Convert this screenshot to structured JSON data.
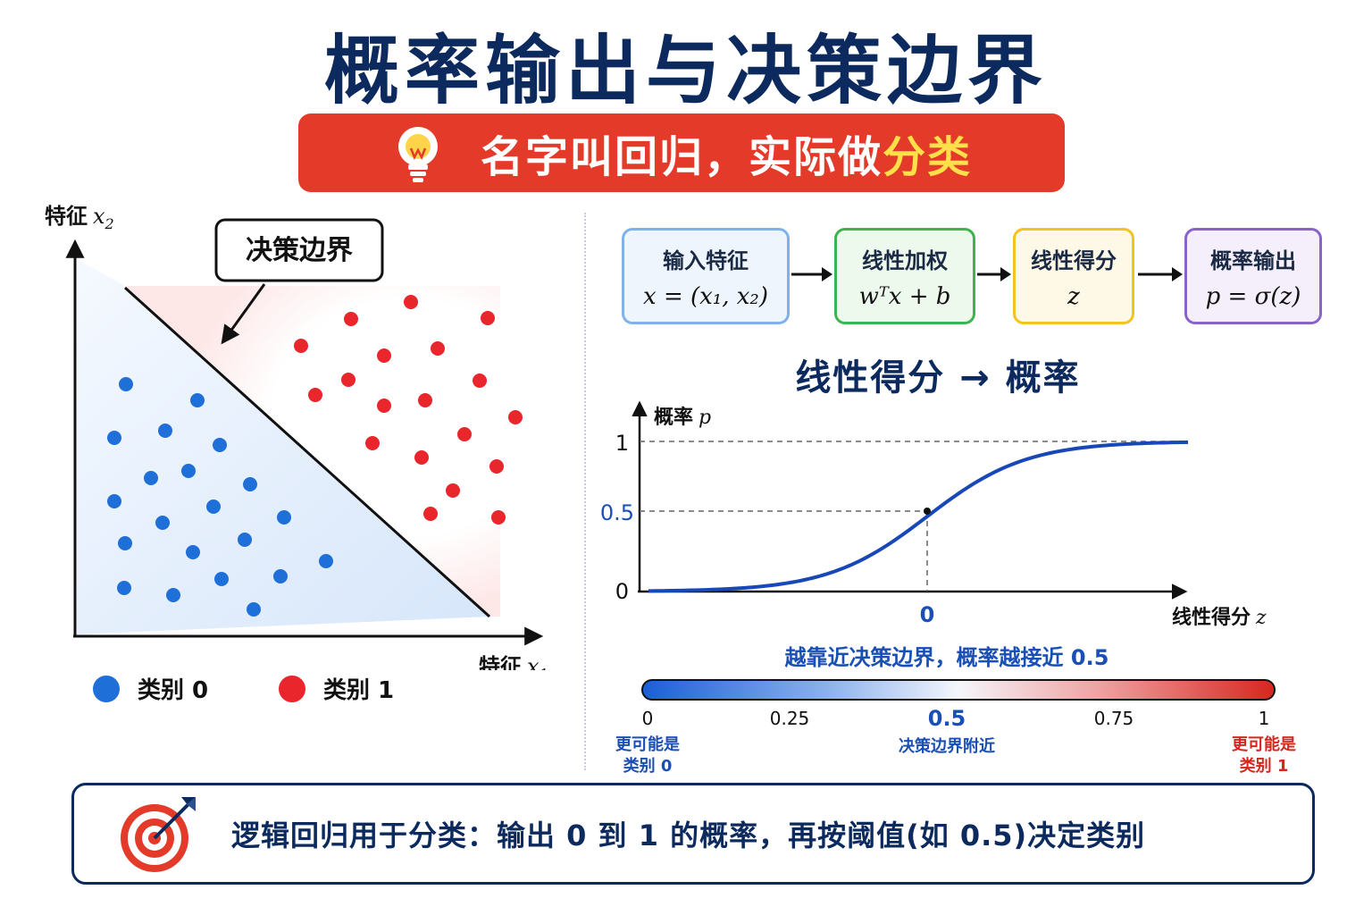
{
  "title": "概率输出与决策边界",
  "banner": {
    "text": "名字叫回归，实际做",
    "highlight": "分类",
    "icon": "lightbulb-icon",
    "color": "#e33a2a",
    "highlight_color": "#ffe04a"
  },
  "scatter": {
    "y_axis_label": "特征",
    "y_axis_var": "x",
    "y_axis_sub": "2",
    "x_axis_label": "特征",
    "x_axis_var": "x",
    "x_axis_sub": "1",
    "boundary_label": "决策边界",
    "class0_color": "#1f6fd8",
    "class1_color": "#e8262b",
    "legend": [
      {
        "label": "类别 0",
        "color": "#1f6fd8"
      },
      {
        "label": "类别 1",
        "color": "#e8262b"
      }
    ]
  },
  "pipeline": [
    {
      "title": "输入特征",
      "formula": "x = (x₁, x₂)",
      "color": "#7fb2ea",
      "bg": "#eef5fd"
    },
    {
      "title": "线性加权",
      "formula": "wᵀx + b",
      "color": "#3fb34f",
      "bg": "#eef9ee"
    },
    {
      "title": "线性得分",
      "formula": "z",
      "color": "#f3c320",
      "bg": "#fef9e6"
    },
    {
      "title": "概率输出",
      "formula": "p = σ(z)",
      "color": "#8a63c7",
      "bg": "#f4effb"
    }
  ],
  "sigmoid": {
    "title": "线性得分 → 概率",
    "y_label": "概率",
    "y_var": "p",
    "x_label": "线性得分",
    "x_var": "z",
    "y_ticks": [
      "1",
      "0.5",
      "0"
    ],
    "x_tick": "0",
    "curve_color": "#1848b8"
  },
  "colorbar": {
    "title": "越靠近决策边界，概率越接近 0.5",
    "ticks": [
      "0",
      "0.25",
      "0.5",
      "0.75",
      "1"
    ],
    "left_desc": "更可能是\n类别 0",
    "mid_desc": "决策边界附近",
    "right_desc": "更可能是\n类别 1",
    "left_color": "#1a4fb5",
    "right_color": "#d6271f"
  },
  "footer": {
    "text": "逻辑回归用于分类：输出 0 到 1 的概率，再按阈值(如 0.5)决定类别",
    "icon": "target-icon"
  }
}
